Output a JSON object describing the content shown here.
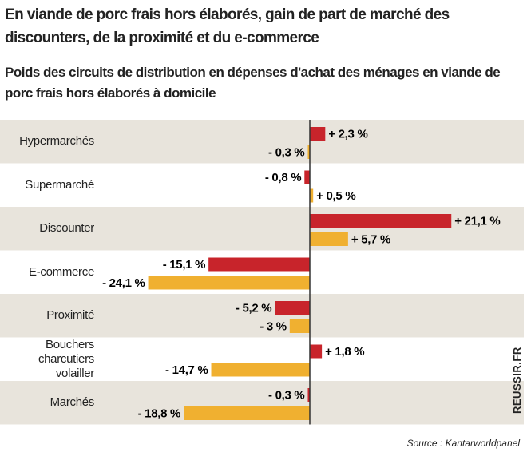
{
  "chart_data": {
    "type": "bar",
    "title": "En viande de porc frais hors élaborés, gain de part de marché des discounters, de la proximité et du e-commerce",
    "subtitle": "Poids des circuits de distribution en dépenses d'achat des ménages en viande de porc frais hors élaborés à domicile",
    "categories": [
      "Hypermarchés",
      "Supermarché",
      "Discounter",
      "E-commerce",
      "Proximité",
      "Bouchers charcutiers volailler",
      "Marchés"
    ],
    "series": [
      {
        "color": "#c8242b",
        "values": [
          2.3,
          -0.8,
          21.1,
          -15.1,
          -5.2,
          1.8,
          -0.3
        ],
        "value_labels": [
          "+ 2,3 %",
          "- 0,8 %",
          "+ 21,1 %",
          "- 15,1 %",
          "- 5,2 %",
          "+ 1,8 %",
          "- 0,3 %"
        ]
      },
      {
        "color": "#f0b030",
        "values": [
          -0.3,
          0.5,
          5.7,
          -24.1,
          -3,
          -14.7,
          -18.8
        ],
        "value_labels": [
          "- 0,3 %",
          "+ 0,5 %",
          "+ 5,7 %",
          "- 24,1 %",
          "- 3 %",
          "- 14,7 %",
          "- 18,8 %"
        ]
      }
    ],
    "source": "Source : Kantarworldpanel",
    "credit": "REUSSIR.FR"
  }
}
